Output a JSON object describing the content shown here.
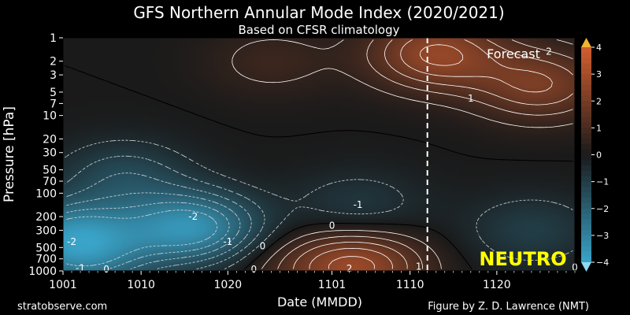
{
  "chart_data": {
    "type": "heatmap",
    "title": "GFS Northern Annular Mode Index (2020/2021)",
    "subtitle": "Based on CFSR climatology",
    "xlabel": "Date (MMDD)",
    "ylabel": "Pressure [hPa]",
    "x_ticks": [
      "1001",
      "1010",
      "1020",
      "1101",
      "1110",
      "1120"
    ],
    "x_tick_days": [
      1,
      10,
      20,
      32,
      41,
      51
    ],
    "x_range_days": [
      1,
      60
    ],
    "forecast_start_day": 43,
    "y_ticks": [
      1,
      2,
      3,
      5,
      7,
      10,
      20,
      30,
      50,
      70,
      100,
      200,
      300,
      500,
      700,
      1000
    ],
    "y_scale": "log",
    "y_range": [
      1,
      1000
    ],
    "colorbar": {
      "ticks": [
        "4",
        "3",
        "2",
        "1",
        "0",
        "−1",
        "−2",
        "−3",
        "−4"
      ],
      "tick_values": [
        4,
        3,
        2,
        1,
        0,
        -1,
        -2,
        -3,
        -4
      ],
      "range": [
        -4,
        4
      ],
      "negative_color": "#3aa3c8",
      "neutral_color": "#1a1a1a",
      "positive_color": "#d25e30"
    },
    "anomaly_centers": [
      {
        "day": 16,
        "p": 280,
        "value": -3.4
      },
      {
        "day": 2,
        "p": 350,
        "value": -3.0
      },
      {
        "day": 8,
        "p": 60,
        "value": -1.3
      },
      {
        "day": 4,
        "p": 800,
        "value": -1.5
      },
      {
        "day": 35,
        "p": 150,
        "value": -0.9
      },
      {
        "day": 55,
        "p": 300,
        "value": -1.0
      },
      {
        "day": 44,
        "p": 1.6,
        "value": 2.6
      },
      {
        "day": 56,
        "p": 4,
        "value": 2.0
      },
      {
        "day": 35,
        "p": 850,
        "value": 2.6
      },
      {
        "day": 25,
        "p": 2,
        "value": 0.7
      },
      {
        "day": 27,
        "p": 900,
        "value": 0.6
      }
    ],
    "contour_labels": [
      {
        "text": "-2",
        "day": 16,
        "p": 200
      },
      {
        "text": "-1",
        "day": 20,
        "p": 420
      },
      {
        "text": "-2",
        "day": 2,
        "p": 420
      },
      {
        "text": "-1",
        "day": 3,
        "p": 920
      },
      {
        "text": "0",
        "day": 6,
        "p": 950
      },
      {
        "text": "0",
        "day": 24,
        "p": 480
      },
      {
        "text": "0",
        "day": 23,
        "p": 950
      },
      {
        "text": "0",
        "day": 32,
        "p": 260
      },
      {
        "text": "-1",
        "day": 35,
        "p": 140
      },
      {
        "text": "2",
        "day": 34,
        "p": 930
      },
      {
        "text": "1",
        "day": 42,
        "p": 880
      },
      {
        "text": "1",
        "day": 48,
        "p": 6
      },
      {
        "text": "2",
        "day": 57,
        "p": 1.5
      },
      {
        "text": "0",
        "day": 60,
        "p": 900
      }
    ],
    "annotations": [
      "Forecast",
      "NEUTRO"
    ],
    "neutro_color": "#ffff00"
  },
  "footer": {
    "left": "stratobserve.com",
    "right": "Figure by Z. D. Lawrence (NMT)"
  }
}
